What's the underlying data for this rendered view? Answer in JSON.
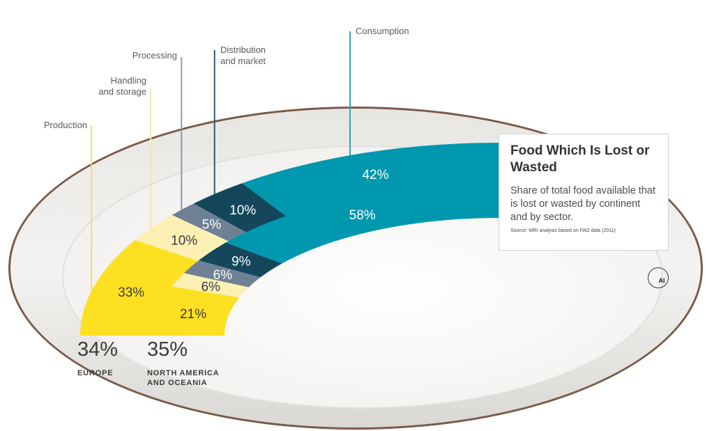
{
  "chart_data": {
    "type": "donut-arcs",
    "title": "Food Which Is Lost or Wasted",
    "subtitle": "Share of total food available that is lost or wasted by continent and by sector.",
    "source": "Source: WRI analysis based on FAO data (2011)",
    "categories": [
      "Production",
      "Handling\nand storage",
      "Processing",
      "Distribution\nand market",
      "Consumption"
    ],
    "colors": [
      "#fde021",
      "#fdf0b5",
      "#6e8194",
      "#14475c",
      "#0098ae"
    ],
    "series": [
      {
        "name": "EUROPE",
        "total_label": "34%",
        "values": [
          33,
          10,
          5,
          10,
          42
        ]
      },
      {
        "name": "NORTH AMERICA\nAND OCEANIA",
        "total_label": "35%",
        "values": [
          21,
          6,
          6,
          9,
          58
        ]
      }
    ]
  },
  "logo_text": "AI"
}
